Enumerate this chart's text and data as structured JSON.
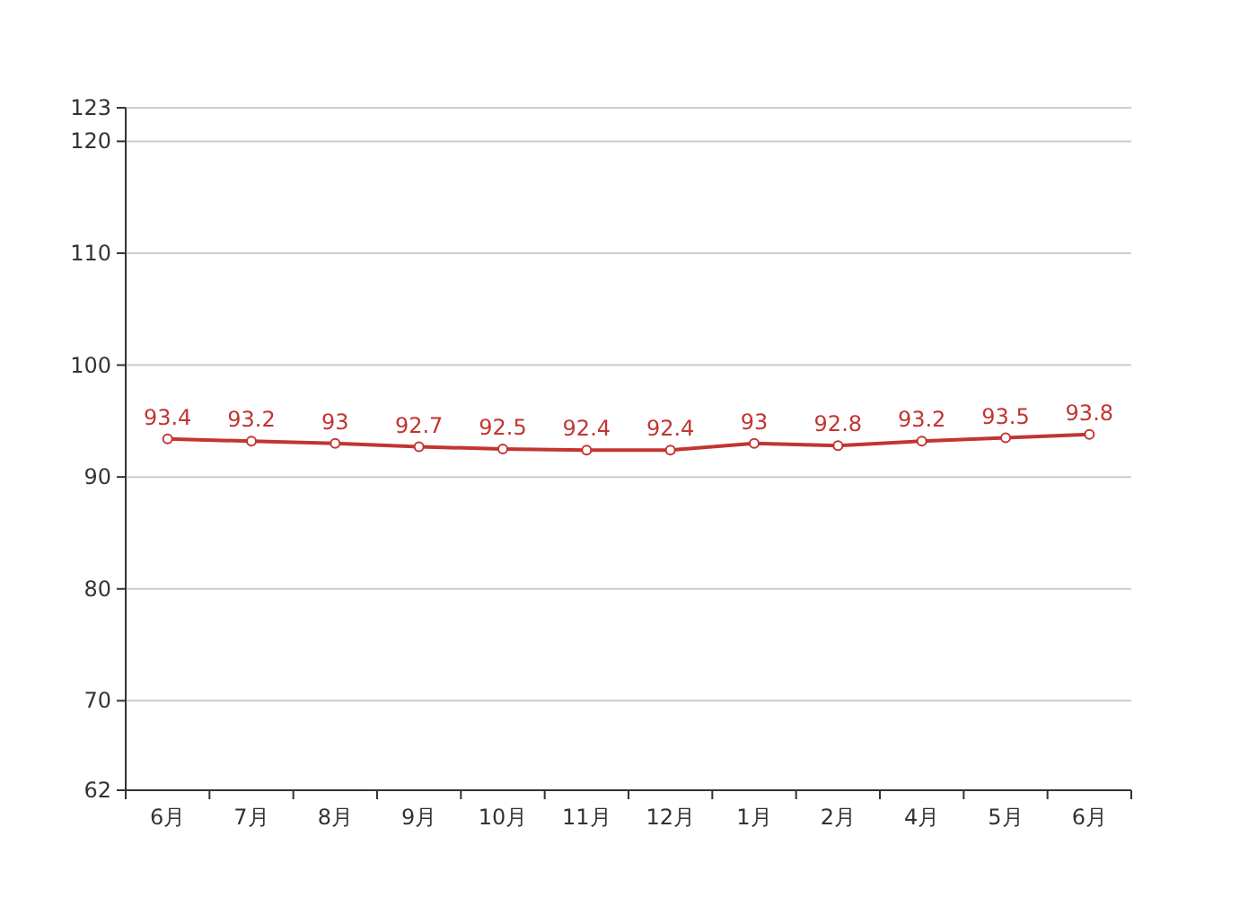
{
  "chart_data": {
    "type": "line",
    "categories": [
      "6月",
      "7月",
      "8月",
      "9月",
      "10月",
      "11月",
      "12月",
      "1月",
      "2月",
      "4月",
      "5月",
      "6月"
    ],
    "series": [
      {
        "color": "#c23531",
        "values": [
          93.4,
          93.2,
          93,
          92.7,
          92.5,
          92.4,
          92.4,
          93,
          92.8,
          93.2,
          93.5,
          93.8
        ]
      }
    ],
    "ylim": [
      62,
      123
    ],
    "yticks": [
      62,
      70,
      80,
      90,
      100,
      110,
      120,
      123
    ],
    "grid": "y",
    "marker": "circle",
    "line_style": "solid",
    "data_labels": true
  }
}
